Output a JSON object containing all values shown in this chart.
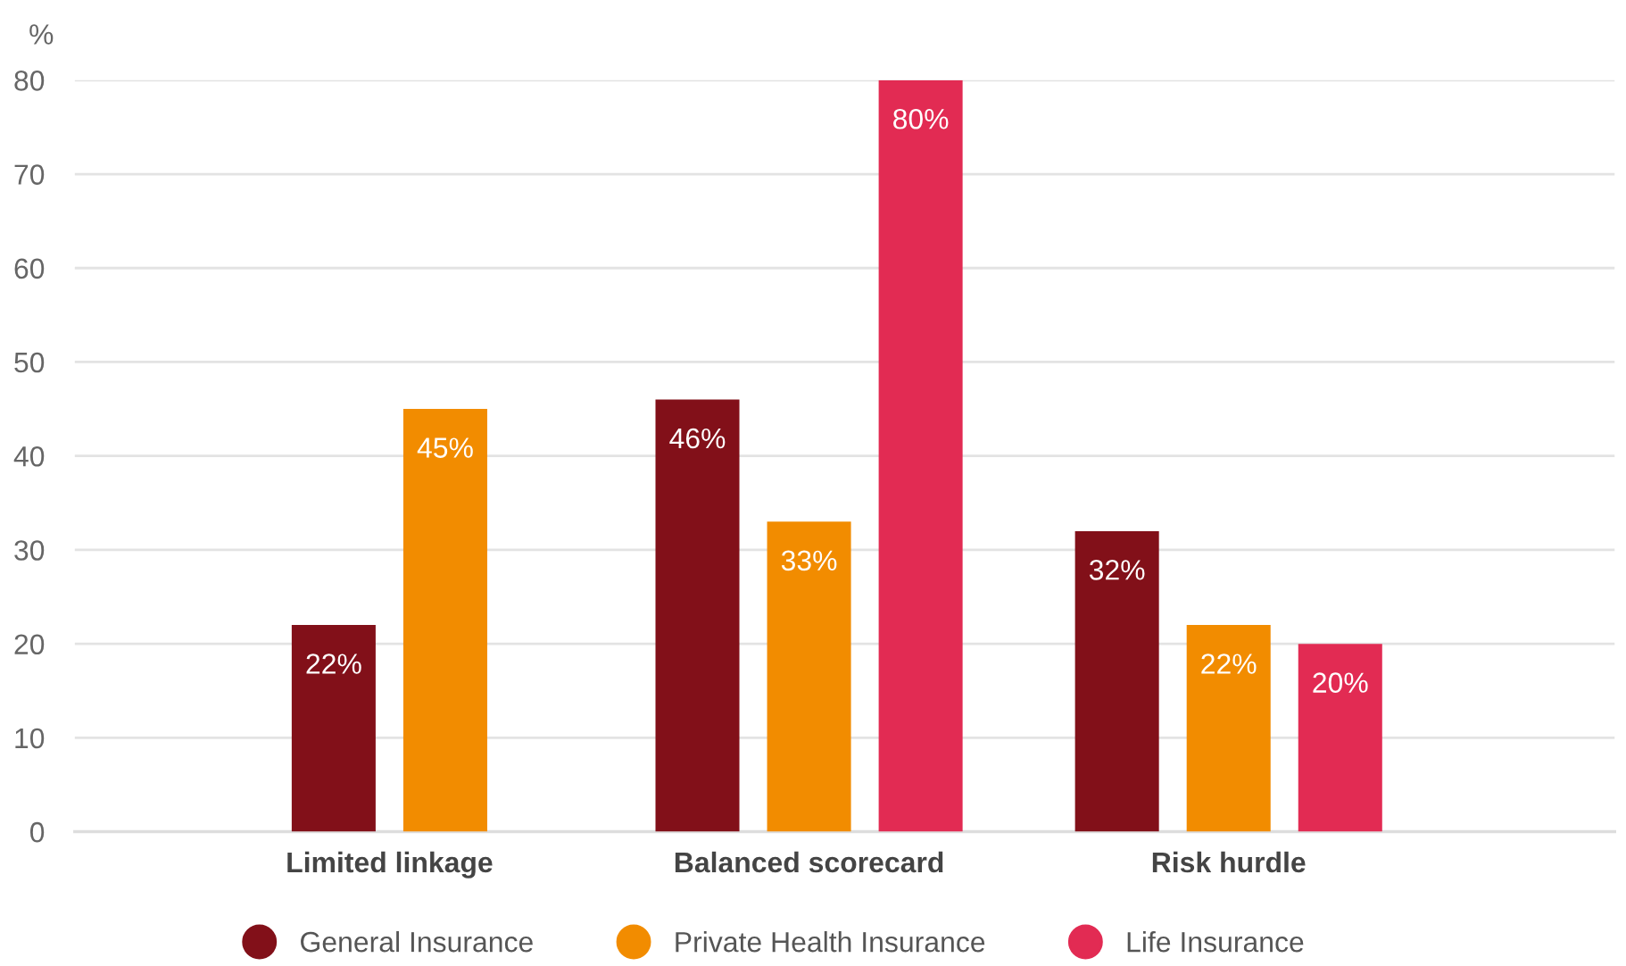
{
  "chart_data": {
    "type": "bar",
    "ylabel": "%",
    "categories": [
      "Limited linkage",
      "Balanced scorecard",
      "Risk hurdle"
    ],
    "series": [
      {
        "name": "General Insurance",
        "color": "#821019",
        "values": [
          22,
          46,
          32
        ],
        "value_labels": [
          "22%",
          "46%",
          "32%"
        ]
      },
      {
        "name": "Private Health Insurance",
        "color": "#f28c00",
        "values": [
          45,
          33,
          22
        ],
        "value_labels": [
          "45%",
          "33%",
          "22%"
        ]
      },
      {
        "name": "Life Insurance",
        "color": "#e22b53",
        "values": [
          null,
          80,
          20
        ],
        "value_labels": [
          null,
          "80%",
          "20%"
        ]
      }
    ],
    "ylim": [
      0,
      80
    ],
    "yticks": [
      0,
      10,
      20,
      30,
      40,
      50,
      60,
      70,
      80
    ],
    "grid": "y",
    "legend": "bottom"
  }
}
